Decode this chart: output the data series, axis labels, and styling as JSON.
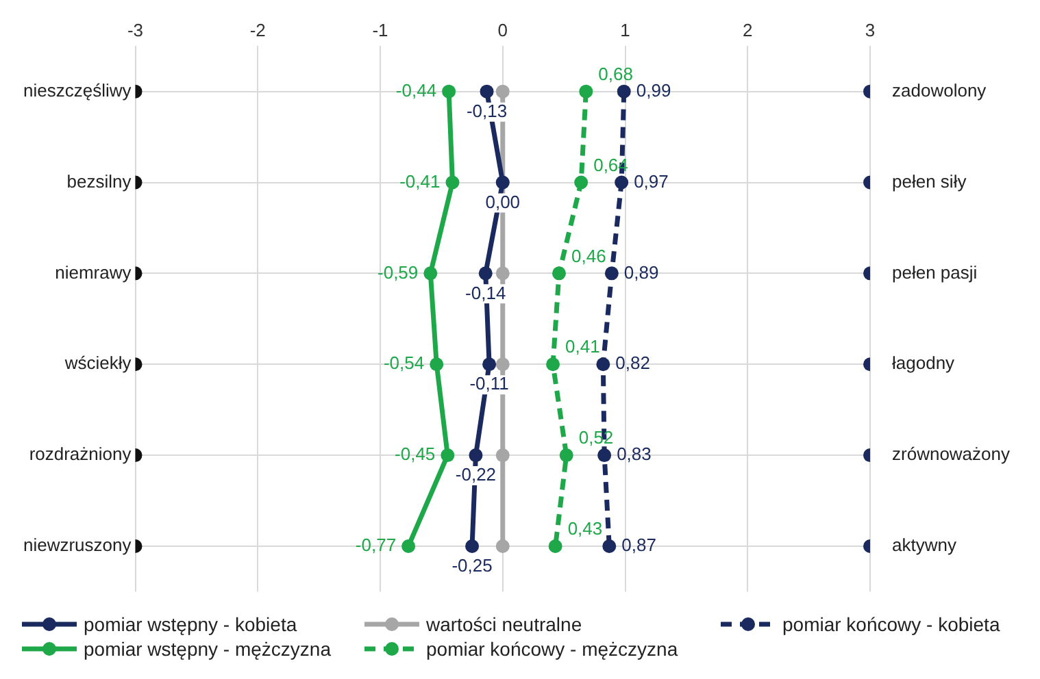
{
  "chart_data": {
    "type": "line",
    "orientation": "horizontal",
    "categories": [
      "nieszczęśliwy",
      "bezsilny",
      "niemrawy",
      "wściekły",
      "rozdrażniony",
      "niewzruszony"
    ],
    "y2_categories": [
      "zadowolony",
      "pełen siły",
      "pełen pasji",
      "łagodny",
      "zrównoważony",
      "aktywny"
    ],
    "xlim": [
      -3,
      3
    ],
    "xticks": [
      -3,
      -2,
      -1,
      0,
      1,
      2,
      3
    ],
    "grid": true,
    "legend": "bottom",
    "marker": "circle",
    "series": [
      {
        "name": "pomiar wstępny - kobieta",
        "color": "#1b2a5e",
        "values": [
          -0.13,
          0.0,
          -0.14,
          -0.11,
          -0.22,
          -0.25
        ],
        "value_labels": [
          "-0,13",
          "0,00",
          "-0,14",
          "-0,11",
          "-0,22",
          "-0,25"
        ]
      },
      {
        "name": "wartości neutralne",
        "color": "#a6a6a6",
        "values": [
          0,
          0,
          0,
          0,
          0,
          0
        ]
      },
      {
        "name": "pomiar końcowy - kobieta",
        "color": "#1b2a5e",
        "line_style": "dashed",
        "values": [
          0.99,
          0.97,
          0.89,
          0.82,
          0.83,
          0.87
        ],
        "value_labels": [
          "0,99",
          "0,97",
          "0,89",
          "0,82",
          "0,83",
          "0,87"
        ]
      },
      {
        "name": "pomiar wstępny - mężczyzna",
        "color": "#1ea84a",
        "values": [
          -0.44,
          -0.41,
          -0.59,
          -0.54,
          -0.45,
          -0.77
        ],
        "value_labels": [
          "-0,44",
          "-0,41",
          "-0,59",
          "-0,54",
          "-0,45",
          "-0,77"
        ]
      },
      {
        "name": "pomiar końcowy - mężczyzna",
        "color": "#1ea84a",
        "line_style": "dashed",
        "values": [
          0.68,
          0.64,
          0.46,
          0.41,
          0.52,
          0.43
        ],
        "value_labels": [
          "0,68",
          "0,64",
          "0,46",
          "0,41",
          "0,52",
          "0,43"
        ]
      },
      {
        "type": "scatter",
        "color": "#111111",
        "values": [
          -3,
          -3,
          -3,
          -3,
          -3,
          -3
        ]
      },
      {
        "type": "scatter",
        "color": "#1b2a5e",
        "values": [
          3,
          3,
          3,
          3,
          3,
          3
        ]
      }
    ]
  }
}
